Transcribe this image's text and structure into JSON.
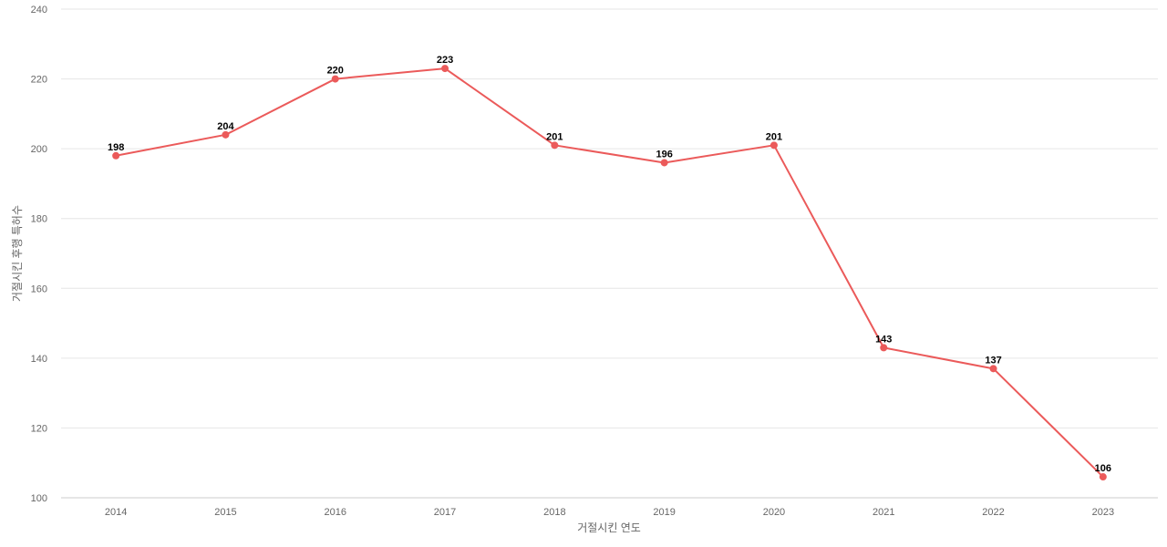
{
  "chart_data": {
    "type": "line",
    "title": "",
    "xlabel": "거절시킨 연도",
    "ylabel": "거절시킨 후행 특허수",
    "categories": [
      "2014",
      "2015",
      "2016",
      "2017",
      "2018",
      "2019",
      "2020",
      "2021",
      "2022",
      "2023"
    ],
    "series": [
      {
        "values": [
          198,
          204,
          220,
          223,
          201,
          196,
          201,
          143,
          137,
          106
        ],
        "color": "#eb5a5a"
      }
    ],
    "ylim": [
      100,
      240
    ],
    "yticks": [
      "100",
      "120",
      "140",
      "160",
      "180",
      "200",
      "220",
      "240"
    ],
    "grid": true,
    "data_labels": true,
    "legend": "none"
  }
}
